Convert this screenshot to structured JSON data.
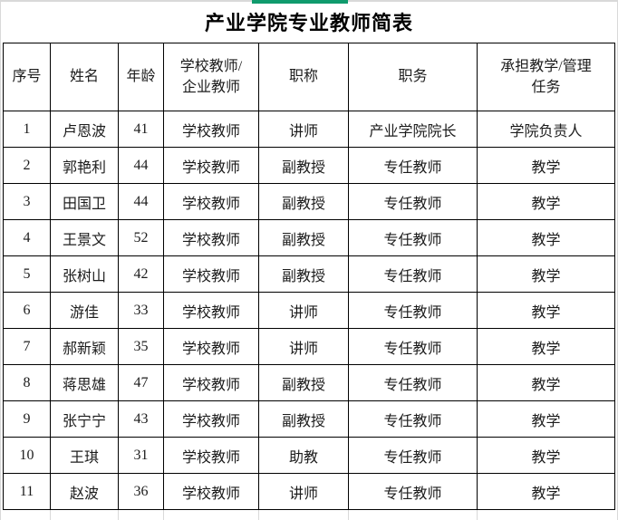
{
  "page": {
    "title": "产业学院专业教师简表"
  },
  "table": {
    "headers": [
      "序号",
      "姓名",
      "年龄",
      "学校教师/\n企业教师",
      "职称",
      "职务",
      "承担教学/管理\n任务"
    ],
    "rows": [
      [
        "1",
        "卢恩波",
        "41",
        "学校教师",
        "讲师",
        "产业学院院长",
        "学院负责人"
      ],
      [
        "2",
        "郭艳利",
        "44",
        "学校教师",
        "副教授",
        "专任教师",
        "教学"
      ],
      [
        "3",
        "田国卫",
        "44",
        "学校教师",
        "副教授",
        "专任教师",
        "教学"
      ],
      [
        "4",
        "王景文",
        "52",
        "学校教师",
        "副教授",
        "专任教师",
        "教学"
      ],
      [
        "5",
        "张树山",
        "42",
        "学校教师",
        "副教授",
        "专任教师",
        "教学"
      ],
      [
        "6",
        "游佳",
        "33",
        "学校教师",
        "讲师",
        "专任教师",
        "教学"
      ],
      [
        "7",
        "郝新颖",
        "35",
        "学校教师",
        "讲师",
        "专任教师",
        "教学"
      ],
      [
        "8",
        "蒋思雄",
        "47",
        "学校教师",
        "副教授",
        "专任教师",
        "教学"
      ],
      [
        "9",
        "张宁宁",
        "43",
        "学校教师",
        "副教授",
        "专任教师",
        "教学"
      ],
      [
        "10",
        "王琪",
        "31",
        "学校教师",
        "助教",
        "专任教师",
        "教学"
      ],
      [
        "11",
        "赵波",
        "36",
        "学校教师",
        "讲师",
        "专任教师",
        "教学"
      ]
    ]
  },
  "colors": {
    "accent_green": "#109b6d",
    "table_border": "#000000",
    "gridline_gray": "#d9d9d9"
  }
}
